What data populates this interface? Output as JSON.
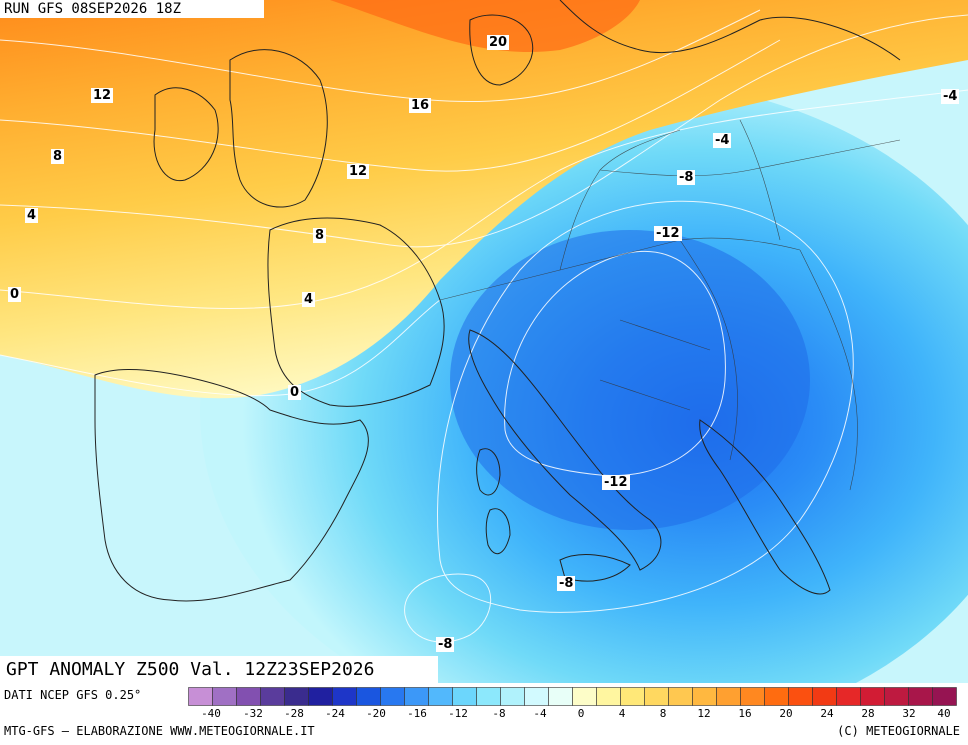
{
  "header": {
    "run_title": "RUN GFS 08SEP2026 18Z"
  },
  "map": {
    "title": "GPT ANOMALY Z500 Val. 12Z23SEP2026",
    "contour_labels": [
      {
        "text": "20",
        "boxed": true
      },
      {
        "text": "12",
        "boxed": true
      },
      {
        "text": "16",
        "boxed": true
      },
      {
        "text": "8",
        "boxed": true
      },
      {
        "text": "12",
        "boxed": true
      },
      {
        "text": "4",
        "boxed": true
      },
      {
        "text": "8",
        "boxed": true
      },
      {
        "text": "0",
        "boxed": true
      },
      {
        "text": "4",
        "boxed": true
      },
      {
        "text": "0",
        "boxed": true
      },
      {
        "text": "-4",
        "boxed": true
      },
      {
        "text": "-4",
        "boxed": true
      },
      {
        "text": "-8",
        "boxed": true
      },
      {
        "text": "-12",
        "boxed": true
      },
      {
        "text": "-12",
        "boxed": true
      },
      {
        "text": "-8",
        "boxed": true
      },
      {
        "text": "-8",
        "boxed": true
      }
    ]
  },
  "footer": {
    "data_source": "DATI NCEP GFS 0.25°",
    "credit_left": "MTG-GFS – ELABORAZIONE WWW.METEOGIORNALE.IT",
    "credit_right": "(C) METEOGIORNALE"
  },
  "legend": {
    "ticks": [
      "-40",
      "-32",
      "-28",
      "-24",
      "-20",
      "-16",
      "-12",
      "-8",
      "-4",
      "0",
      "4",
      "8",
      "12",
      "16",
      "20",
      "24",
      "28",
      "32",
      "40"
    ],
    "colors": [
      "#c78fd6",
      "#a070c4",
      "#8250b0",
      "#5a3c9c",
      "#3a2c8e",
      "#2020a0",
      "#1e36c8",
      "#1a56e0",
      "#2878f0",
      "#3c98f8",
      "#52b8fc",
      "#6cd6fc",
      "#8ce8fc",
      "#b0f2fc",
      "#d2faff",
      "#e8fff8",
      "#fdfdc8",
      "#fff6a0",
      "#ffe878",
      "#ffd860",
      "#ffc850",
      "#ffb840",
      "#ffa030",
      "#ff8820",
      "#ff6c10",
      "#fb5010",
      "#f23a14",
      "#e62828",
      "#d21c34",
      "#be1a40",
      "#a8164a",
      "#961452"
    ]
  }
}
